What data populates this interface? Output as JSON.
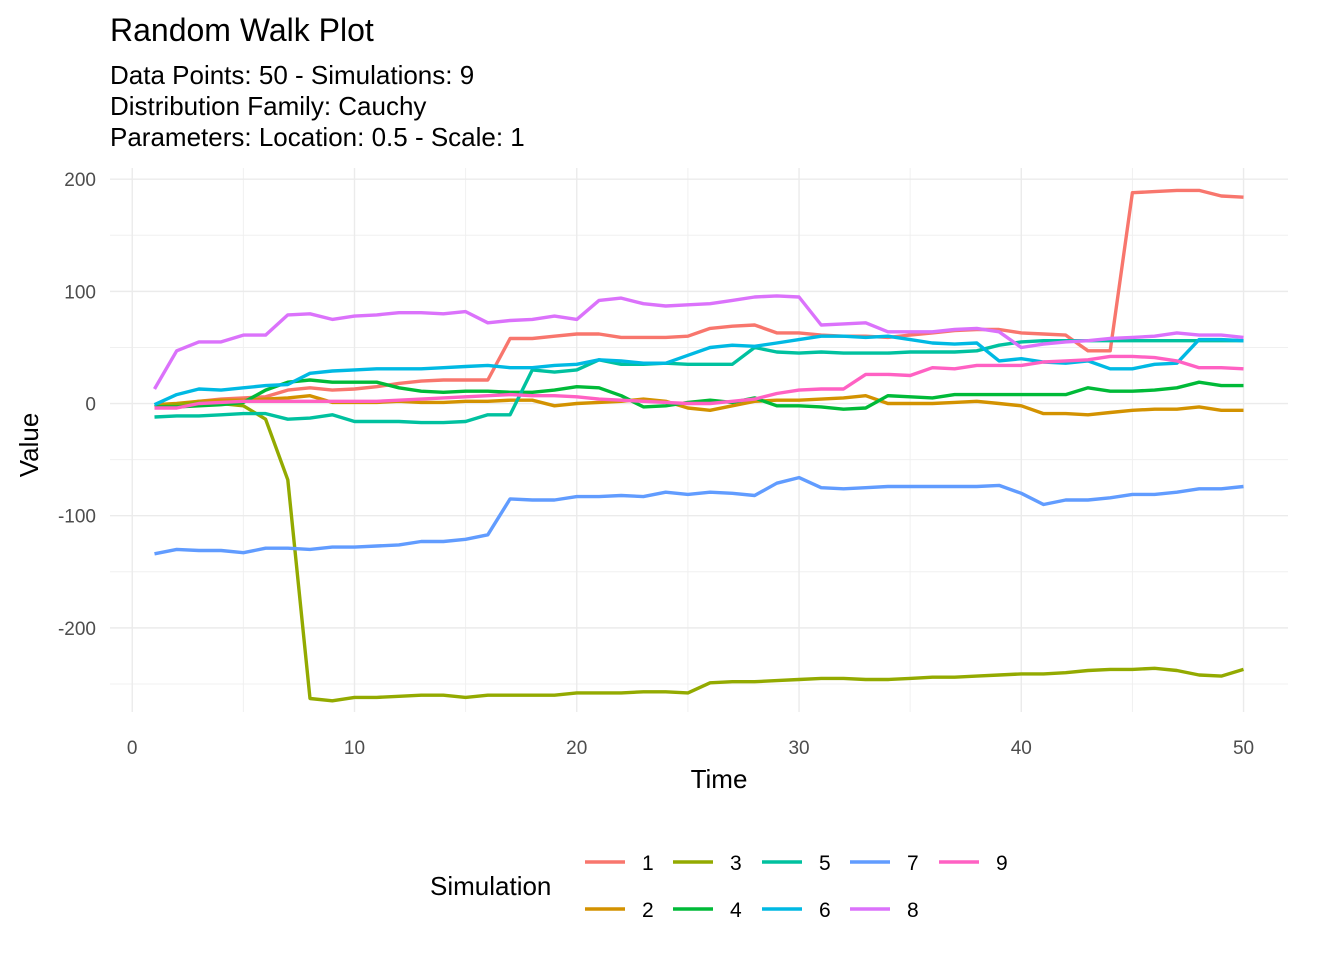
{
  "title": "Random Walk Plot",
  "subtitle": [
    "Data Points: 50 - Simulations: 9",
    "Distribution Family: Cauchy",
    "Parameters: Location: 0.5 - Scale: 1"
  ],
  "chart_data": {
    "type": "line",
    "title": "Random Walk Plot",
    "xlabel": "Time",
    "ylabel": "Value",
    "xlim": [
      -1,
      52
    ],
    "ylim": [
      -275,
      210
    ],
    "x_ticks": [
      0,
      10,
      20,
      30,
      40,
      50
    ],
    "y_ticks": [
      200,
      100,
      0,
      -100,
      -200
    ],
    "y_tick_labels": [
      "200",
      "100",
      "0",
      "-100",
      "-200"
    ],
    "grid": true,
    "legend": {
      "title": "Simulation",
      "position": "bottom"
    },
    "x": [
      1,
      2,
      3,
      4,
      5,
      6,
      7,
      8,
      9,
      10,
      11,
      12,
      13,
      14,
      15,
      16,
      17,
      18,
      19,
      20,
      21,
      22,
      23,
      24,
      25,
      26,
      27,
      28,
      29,
      30,
      31,
      32,
      33,
      34,
      35,
      36,
      37,
      38,
      39,
      40,
      41,
      42,
      43,
      44,
      45,
      46,
      47,
      48,
      49,
      50
    ],
    "series": [
      {
        "name": "1",
        "color": "#F8766D",
        "values": [
          -3,
          -1,
          2,
          4,
          5,
          6,
          12,
          14,
          12,
          13,
          15,
          18,
          20,
          21,
          21,
          21,
          58,
          58,
          60,
          62,
          62,
          59,
          59,
          59,
          60,
          67,
          69,
          70,
          63,
          63,
          61,
          60,
          60,
          59,
          61,
          63,
          65,
          66,
          66,
          63,
          62,
          61,
          47,
          47,
          188,
          189,
          190,
          190,
          185,
          184
        ]
      },
      {
        "name": "2",
        "color": "#D39200",
        "values": [
          -1,
          0,
          2,
          3,
          3,
          4,
          5,
          7,
          1,
          1,
          1,
          2,
          1,
          1,
          2,
          2,
          3,
          3,
          -2,
          0,
          1,
          2,
          4,
          2,
          -4,
          -6,
          -2,
          2,
          3,
          3,
          4,
          5,
          7,
          0,
          0,
          0,
          1,
          2,
          0,
          -2,
          -9,
          -9,
          -10,
          -8,
          -6,
          -5,
          -5,
          -3,
          -6,
          -6
        ]
      },
      {
        "name": "3",
        "color": "#93AA00",
        "values": [
          -3,
          -1,
          1,
          0,
          -2,
          -14,
          -68,
          -263,
          -265,
          -262,
          -262,
          -261,
          -260,
          -260,
          -262,
          -260,
          -260,
          -260,
          -260,
          -258,
          -258,
          -258,
          -257,
          -257,
          -258,
          -249,
          -248,
          -248,
          -247,
          -246,
          -245,
          -245,
          -246,
          -246,
          -245,
          -244,
          -244,
          -243,
          -242,
          -241,
          -241,
          -240,
          -238,
          -237,
          -237,
          -236,
          -238,
          -242,
          -243,
          -237
        ]
      },
      {
        "name": "4",
        "color": "#00BA38",
        "values": [
          -3,
          -3,
          -2,
          -1,
          1,
          12,
          19,
          21,
          19,
          19,
          19,
          14,
          11,
          10,
          11,
          11,
          10,
          10,
          12,
          15,
          14,
          7,
          -3,
          -2,
          1,
          3,
          1,
          5,
          -2,
          -2,
          -3,
          -5,
          -4,
          7,
          6,
          5,
          8,
          8,
          8,
          8,
          8,
          8,
          14,
          11,
          11,
          12,
          14,
          19,
          16,
          16
        ]
      },
      {
        "name": "5",
        "color": "#00C19F",
        "values": [
          -12,
          -11,
          -11,
          -10,
          -9,
          -9,
          -14,
          -13,
          -10,
          -16,
          -16,
          -16,
          -17,
          -17,
          -16,
          -10,
          -10,
          30,
          28,
          30,
          39,
          35,
          35,
          36,
          35,
          35,
          35,
          50,
          46,
          45,
          46,
          45,
          45,
          45,
          46,
          46,
          46,
          47,
          52,
          55,
          56,
          56,
          56,
          56,
          56,
          56,
          56,
          56,
          56,
          56
        ]
      },
      {
        "name": "6",
        "color": "#00B9E3",
        "values": [
          -1,
          8,
          13,
          12,
          14,
          16,
          17,
          27,
          29,
          30,
          31,
          31,
          31,
          32,
          33,
          34,
          32,
          32,
          34,
          35,
          39,
          38,
          36,
          36,
          43,
          50,
          52,
          51,
          54,
          57,
          60,
          60,
          59,
          60,
          57,
          54,
          53,
          54,
          38,
          40,
          37,
          36,
          38,
          31,
          31,
          35,
          36,
          57,
          57,
          56
        ]
      },
      {
        "name": "7",
        "color": "#619CFF",
        "values": [
          -134,
          -130,
          -131,
          -131,
          -133,
          -129,
          -129,
          -130,
          -128,
          -128,
          -127,
          -126,
          -123,
          -123,
          -121,
          -117,
          -85,
          -86,
          -86,
          -83,
          -83,
          -82,
          -83,
          -79,
          -81,
          -79,
          -80,
          -82,
          -71,
          -66,
          -75,
          -76,
          -75,
          -74,
          -74,
          -74,
          -74,
          -74,
          -73,
          -80,
          -90,
          -86,
          -86,
          -84,
          -81,
          -81,
          -79,
          -76,
          -76,
          -74
        ]
      },
      {
        "name": "8",
        "color": "#DB72FB",
        "values": [
          13,
          47,
          55,
          55,
          61,
          61,
          79,
          80,
          75,
          78,
          79,
          81,
          81,
          80,
          82,
          72,
          74,
          75,
          78,
          75,
          92,
          94,
          89,
          87,
          88,
          89,
          92,
          95,
          96,
          95,
          70,
          71,
          72,
          64,
          64,
          64,
          66,
          67,
          64,
          50,
          53,
          55,
          56,
          58,
          59,
          60,
          63,
          61,
          61,
          59
        ]
      },
      {
        "name": "9",
        "color": "#FF61C3",
        "values": [
          -4,
          -4,
          0,
          1,
          2,
          2,
          2,
          2,
          2,
          2,
          2,
          3,
          4,
          5,
          6,
          7,
          8,
          7,
          7,
          6,
          4,
          3,
          2,
          1,
          0,
          0,
          2,
          4,
          9,
          12,
          13,
          13,
          26,
          26,
          25,
          32,
          31,
          34,
          34,
          34,
          37,
          38,
          39,
          42,
          42,
          41,
          38,
          32,
          32,
          31
        ]
      }
    ]
  }
}
